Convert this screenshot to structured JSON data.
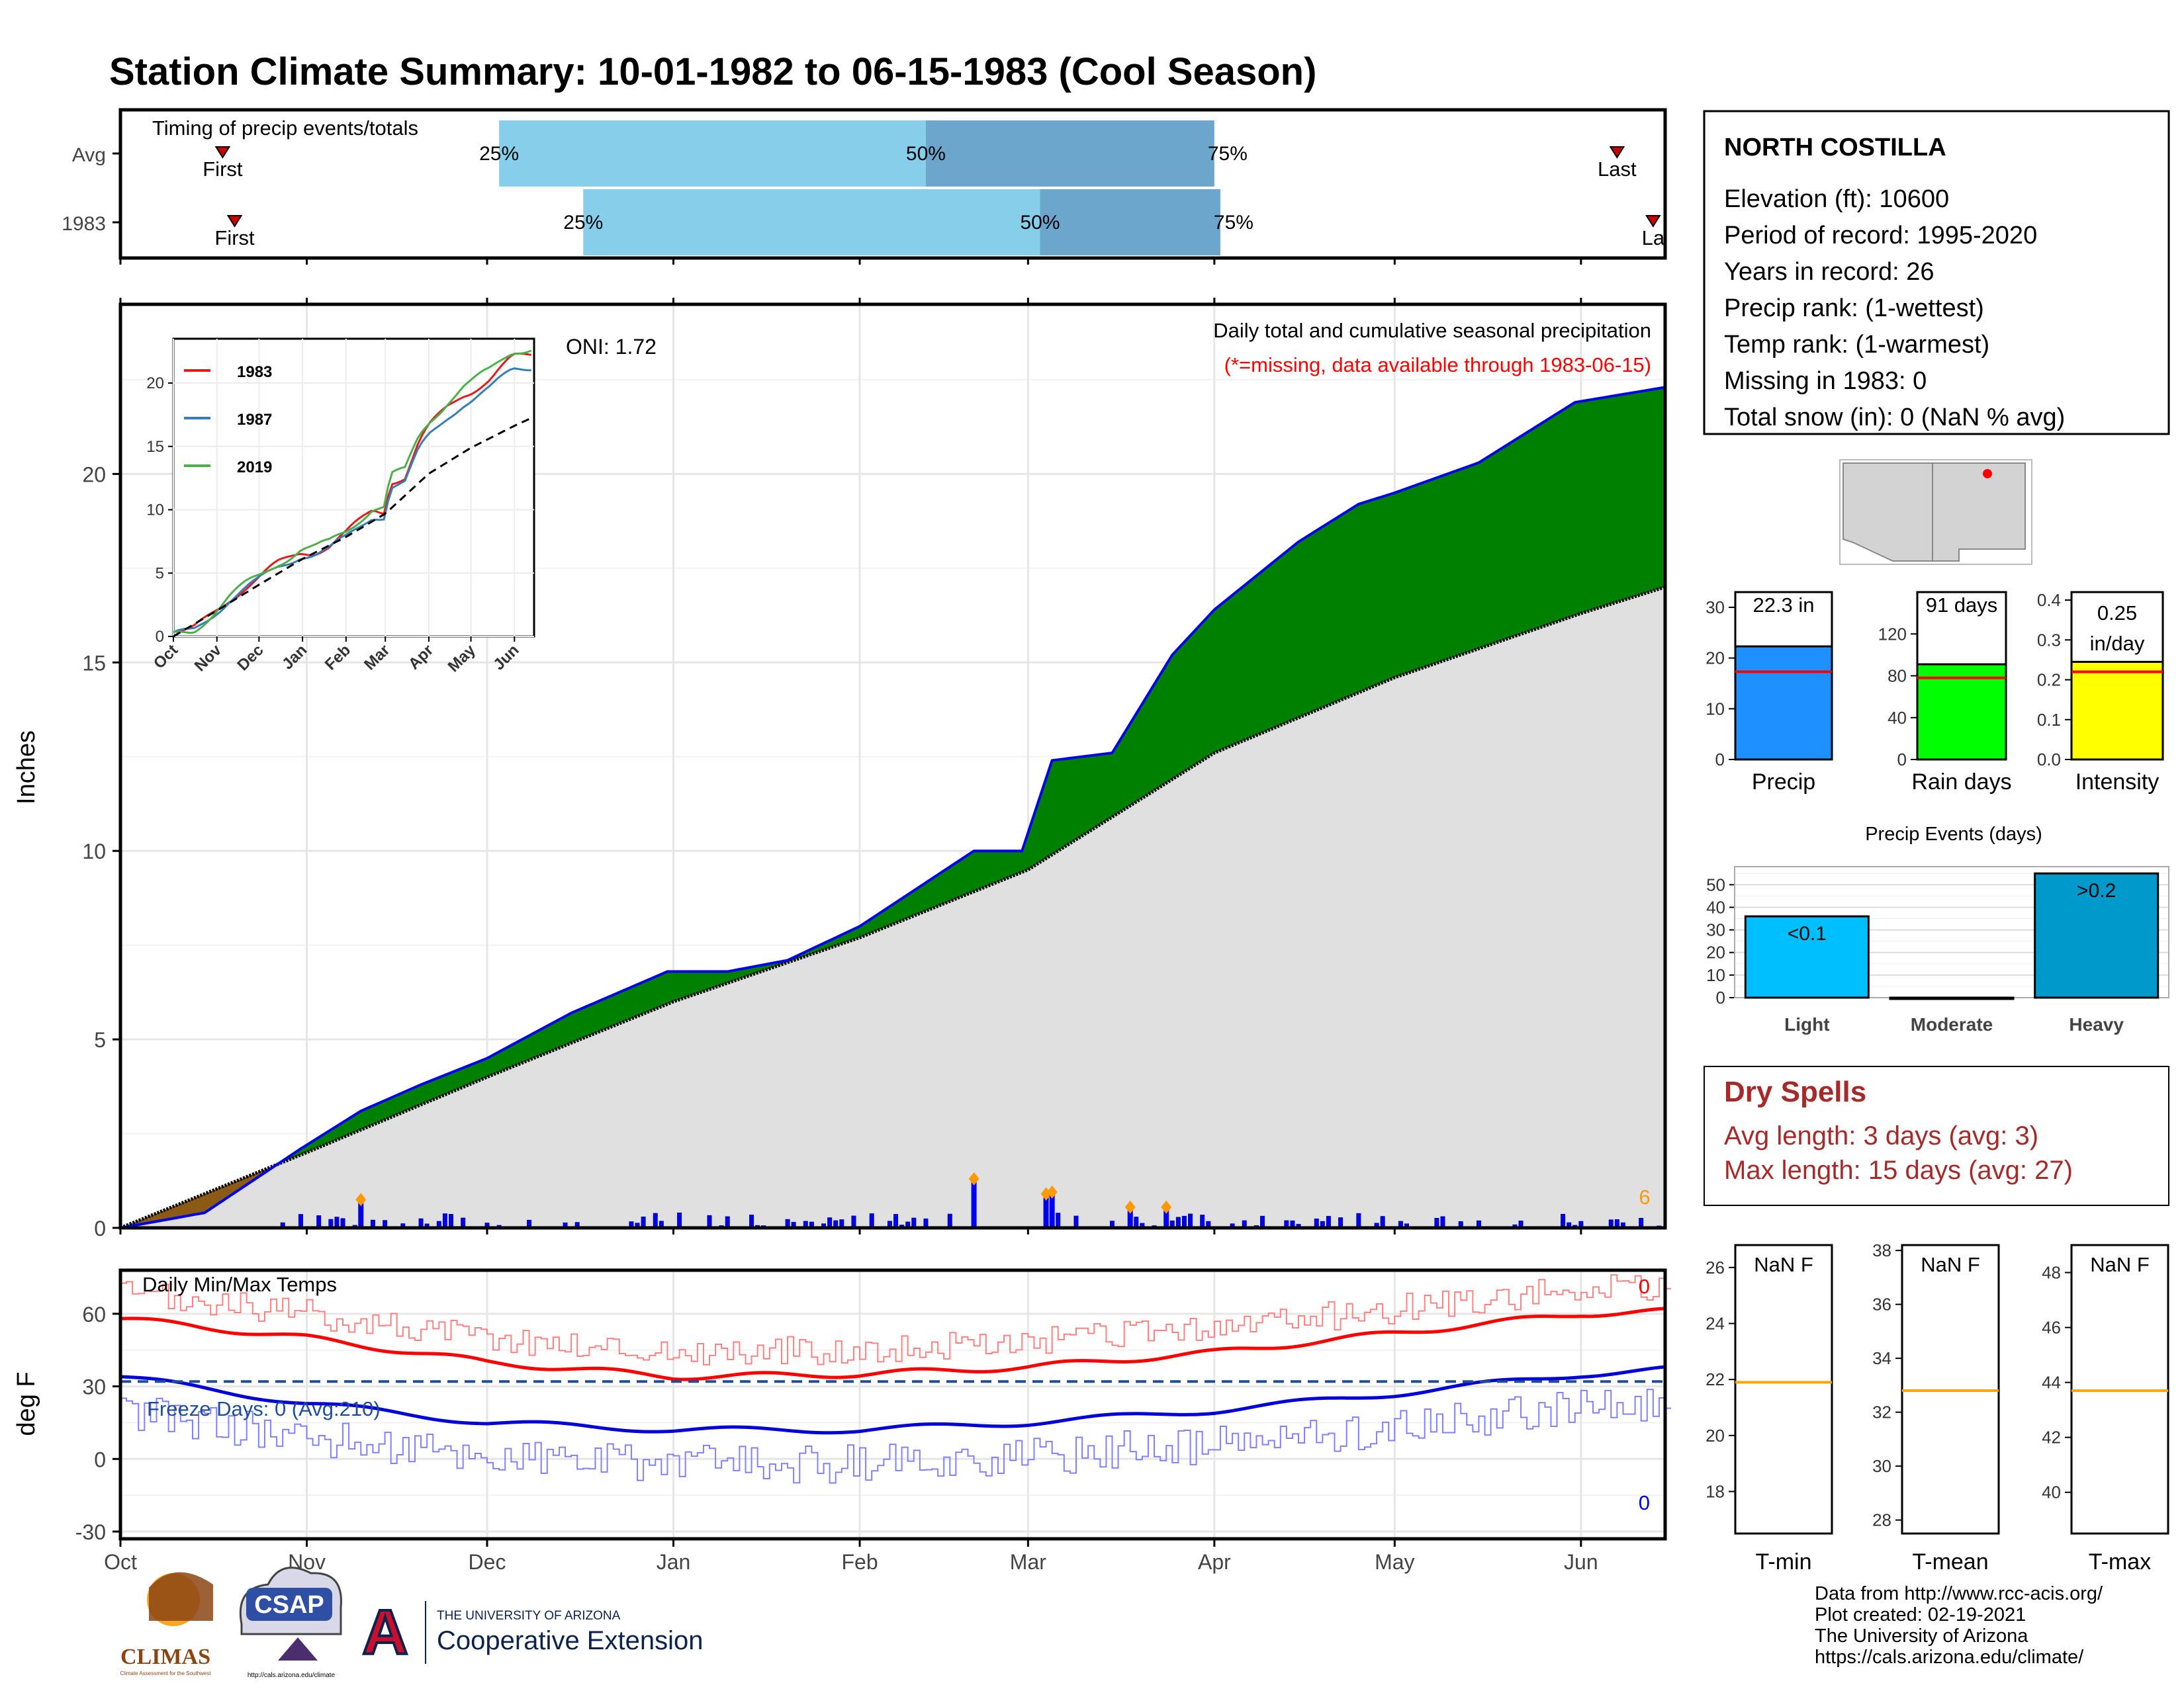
{
  "title": "Station Climate Summary: 10-01-1982 to 06-15-1983 (Cool Season)",
  "colors": {
    "title": "#2a4a8e",
    "precip_fill": "#008000",
    "precip_line": "#0000ee",
    "avg_fill": "#e0e0e0",
    "early_fill": "#8b5a14",
    "qlight": "#87ceeb",
    "qdark": "#6ca6cd",
    "tmax": "#ff0000",
    "tmin": "#0000dd",
    "freeze_line": "#1f4e99",
    "event_marker": "#ff9900",
    "dry_spells": "#a52a2a"
  },
  "timing_panel": {
    "title": "Timing of precip events/totals",
    "rows": [
      {
        "label": "Avg",
        "first_label": "First",
        "last_label": "Last",
        "q25_label": "25%",
        "q50_label": "50%",
        "q75_label": "75%",
        "first": "1982-10-18",
        "last": "1983-06-07",
        "q25": "1982-12-03",
        "q50": "1983-02-12",
        "q75": "1983-04-01"
      },
      {
        "label": "1983",
        "first_label": "First",
        "last_label": "La",
        "q25_label": "25%",
        "q50_label": "50%",
        "q75_label": "75%",
        "first": "1982-10-20",
        "last": "1983-06-13",
        "q25": "1982-12-17",
        "q50": "1983-03-03",
        "q75": "1983-04-02"
      }
    ]
  },
  "precip_panel": {
    "ylabel": "Inches",
    "label_oni": "ONI: 1.72",
    "label_desc": "Daily total and cumulative seasonal precipitation",
    "label_missing": "(*=missing, data available through 1983-06-15)",
    "corner_count": "6",
    "yticks": [
      "0",
      "5",
      "10",
      "15",
      "20"
    ],
    "inset": {
      "yticks": [
        "0",
        "5",
        "10",
        "15",
        "20"
      ],
      "xticks": [
        "Oct",
        "Nov",
        "Dec",
        "Jan",
        "Feb",
        "Mar",
        "Apr",
        "May",
        "Jun"
      ],
      "legend": [
        {
          "name": "1983",
          "color": "#e41a1c"
        },
        {
          "name": "1987",
          "color": "#377eb8"
        },
        {
          "name": "2019",
          "color": "#4daf4a"
        }
      ]
    }
  },
  "temp_panel": {
    "ylabel": "deg F",
    "title": "Daily Min/Max Temps",
    "freeze_label": "Freeze Days: 0 (Avg:210)",
    "top_count": "0",
    "bottom_count": "0",
    "yticks": [
      "-30",
      "0",
      "30",
      "60"
    ],
    "xticks": [
      "Oct",
      "Nov",
      "Dec",
      "Jan",
      "Feb",
      "Mar",
      "Apr",
      "May",
      "Jun"
    ]
  },
  "station": {
    "name": "NORTH COSTILLA",
    "lines": [
      "Elevation (ft): 10600",
      "Period of record: 1995-2020",
      "Years in record: 26",
      "Precip rank:  (1-wettest)",
      "Temp rank:  (1-warmest)",
      "Missing in 1983: 0",
      "Total snow (in): 0 (NaN % avg)"
    ]
  },
  "summary_bars": [
    {
      "label": "Precip",
      "value_label": "22.3 in",
      "value": 22.3,
      "avg": 17.3,
      "max": 33,
      "yticks": [
        "0",
        "10",
        "20",
        "30"
      ],
      "color": "#1e90ff"
    },
    {
      "label": "Rain days",
      "value_label": "91 days",
      "value": 91,
      "avg": 78,
      "max": 160,
      "yticks": [
        "0",
        "40",
        "80",
        "120"
      ],
      "color": "#00ff00"
    },
    {
      "label": "Intensity",
      "value_label_1": "0.25",
      "value_label_2": "in/day",
      "value": 0.245,
      "avg": 0.22,
      "max": 0.42,
      "yticks": [
        "0.0",
        "0.1",
        "0.2",
        "0.3",
        "0.4"
      ],
      "color": "#ffff00"
    }
  ],
  "precip_events": {
    "title": "Precip Events (days)",
    "yticks": [
      "0",
      "10",
      "20",
      "30",
      "40",
      "50"
    ],
    "bars": [
      {
        "label": "Light",
        "value": 36,
        "text": "<0.1",
        "color": "#00bfff"
      },
      {
        "label": "Moderate",
        "value": 0,
        "text": "",
        "color": "#1e90ff"
      },
      {
        "label": "Heavy",
        "value": 55,
        "text": ">0.2",
        "color": "#0099cc"
      }
    ]
  },
  "dry_spells": {
    "title": "Dry Spells",
    "avg_line": "Avg length: 3 days (avg: 3)",
    "max_line": "Max length: 15 days (avg: 27)"
  },
  "temp_boxes": [
    {
      "label": "T-min",
      "value_label": "NaN F",
      "avg": 21.9,
      "ymin": 16.5,
      "ymax": 26.8,
      "yticks": [
        "18",
        "20",
        "22",
        "24",
        "26"
      ]
    },
    {
      "label": "T-mean",
      "value_label": "NaN F",
      "avg": 32.8,
      "ymin": 27.5,
      "ymax": 38.2,
      "yticks": [
        "28",
        "30",
        "32",
        "34",
        "36",
        "38"
      ]
    },
    {
      "label": "T-max",
      "value_label": "NaN F",
      "avg": 43.7,
      "ymin": 38.5,
      "ymax": 49,
      "yticks": [
        "40",
        "42",
        "44",
        "46",
        "48"
      ]
    }
  ],
  "footer": {
    "lines": [
      "Data from http://www.rcc-acis.org/",
      "Plot created: 02-19-2021",
      "The University of Arizona",
      "https://cals.arizona.edu/climate/"
    ],
    "logo_climas": "CLIMAS",
    "logo_climas_sub": "Climate Assessment for the Southwest",
    "logo_csap": "CSAP",
    "logo_csap_url": "http://cals.arizona.edu/climate",
    "ua_small": "THE UNIVERSITY OF ARIZONA",
    "ua_big": "Cooperative Extension",
    "ua_letter": "A"
  },
  "chart_data": [
    {
      "type": "area",
      "title": "Daily total and cumulative seasonal precipitation",
      "ylabel": "Inches",
      "x_range": [
        "1982-10-01",
        "1983-06-15"
      ],
      "ylim": [
        0,
        24.5
      ],
      "series": [
        {
          "name": "1983",
          "x": [
            "1982-10-01",
            "1982-10-15",
            "1982-10-31",
            "1982-11-10",
            "1982-11-20",
            "1982-12-01",
            "1982-12-15",
            "1982-12-31",
            "1983-01-10",
            "1983-01-20",
            "1983-02-01",
            "1983-02-20",
            "1983-02-28",
            "1983-03-05",
            "1983-03-15",
            "1983-03-25",
            "1983-04-01",
            "1983-04-15",
            "1983-04-25",
            "1983-05-01",
            "1983-05-15",
            "1983-05-31",
            "1983-06-15"
          ],
          "y": [
            0,
            0.4,
            2.1,
            3.1,
            3.8,
            4.5,
            5.7,
            6.8,
            6.8,
            7.1,
            8.0,
            10.0,
            10.0,
            12.4,
            12.6,
            15.2,
            16.4,
            18.2,
            19.2,
            19.5,
            20.3,
            21.9,
            22.3
          ]
        },
        {
          "name": "Average",
          "x": [
            "1982-10-01",
            "1982-11-01",
            "1982-12-01",
            "1983-01-01",
            "1983-02-01",
            "1983-03-01",
            "1983-04-01",
            "1983-05-01",
            "1983-06-01",
            "1983-06-15"
          ],
          "y": [
            0,
            2.0,
            4.0,
            6.0,
            7.7,
            9.5,
            12.6,
            14.6,
            16.3,
            17.0
          ]
        }
      ],
      "daily_events": [
        {
          "x": "1982-11-10",
          "y": 0.75
        },
        {
          "x": "1983-02-20",
          "y": 1.3
        },
        {
          "x": "1983-03-04",
          "y": 0.9
        },
        {
          "x": "1983-03-05",
          "y": 0.95
        },
        {
          "x": "1983-03-18",
          "y": 0.55
        },
        {
          "x": "1983-03-24",
          "y": 0.55
        }
      ]
    },
    {
      "type": "line",
      "title": "Daily Min/Max Temps",
      "ylabel": "deg F",
      "ylim": [
        -30,
        75
      ],
      "series": [
        {
          "name": "avg max",
          "x": [
            "1982-10-01",
            "1982-11-01",
            "1982-12-01",
            "1983-01-01",
            "1983-02-01",
            "1983-03-01",
            "1983-04-01",
            "1983-05-01",
            "1983-06-01",
            "1983-06-15"
          ],
          "y": [
            58,
            50,
            40,
            34,
            35,
            38,
            44,
            52,
            60,
            61
          ]
        },
        {
          "name": "avg min",
          "x": [
            "1982-10-01",
            "1982-11-01",
            "1982-12-01",
            "1983-01-01",
            "1983-02-01",
            "1983-03-01",
            "1983-04-01",
            "1983-05-01",
            "1983-06-01",
            "1983-06-15"
          ],
          "y": [
            34,
            23,
            15,
            12,
            12,
            15,
            20,
            27,
            35,
            37
          ]
        },
        {
          "name": "freeze",
          "x": [
            "1982-10-01",
            "1983-06-15"
          ],
          "y": [
            32,
            32
          ]
        }
      ]
    }
  ]
}
